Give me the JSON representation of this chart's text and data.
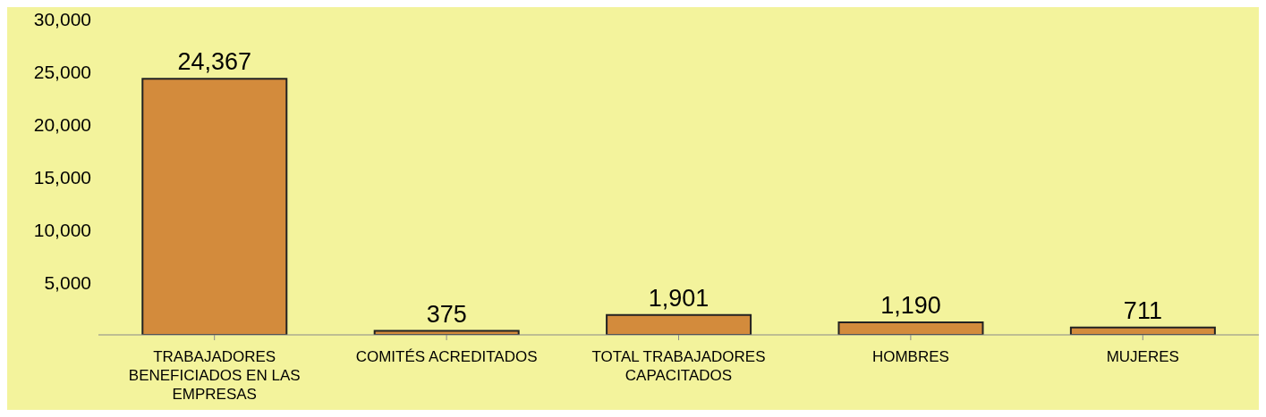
{
  "chart_data": {
    "type": "bar",
    "categories": [
      "TRABAJADORES BENEFICIADOS EN LAS EMPRESAS",
      "COMITÉS  ACREDITADOS",
      "TOTAL TRABAJADORES CAPACITADOS",
      "HOMBRES",
      "MUJERES"
    ],
    "values": [
      24367,
      375,
      1901,
      1190,
      711
    ],
    "value_labels": [
      "24,367",
      "375",
      "1,901",
      "1,190",
      "711"
    ],
    "color": "#d38b3c",
    "ylim": [
      0,
      30000
    ],
    "yticks": [
      {
        "value": 0,
        "label": null
      },
      {
        "value": 5000,
        "label": "5,000"
      },
      {
        "value": 10000,
        "label": "10,000"
      },
      {
        "value": 15000,
        "label": "15,000"
      },
      {
        "value": 20000,
        "label": "20,000"
      },
      {
        "value": 25000,
        "label": "25,000"
      },
      {
        "value": 30000,
        "label": "30,000"
      }
    ],
    "grid": false,
    "legend": false
  }
}
